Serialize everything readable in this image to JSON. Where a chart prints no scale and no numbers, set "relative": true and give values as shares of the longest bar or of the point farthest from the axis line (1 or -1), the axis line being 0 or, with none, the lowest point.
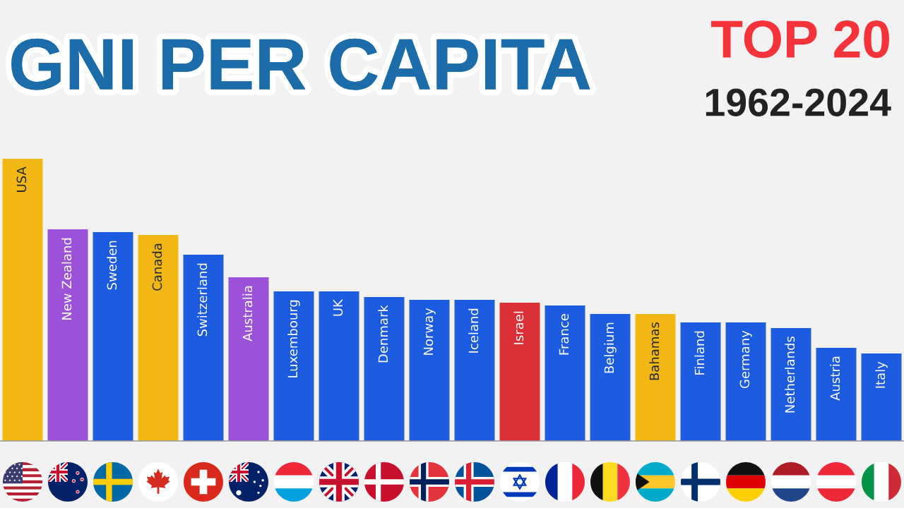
{
  "chart_data": {
    "type": "bar",
    "title": "GNI PER CAPITA",
    "subtitle": "TOP 20",
    "annotations": [
      "1962-2024"
    ],
    "relative": true,
    "categories": [
      "USA",
      "New Zealand",
      "Sweden",
      "Canada",
      "Switzerland",
      "Australia",
      "Luxembourg",
      "UK",
      "Denmark",
      "Norway",
      "Iceland",
      "Israel",
      "France",
      "Belgium",
      "Bahamas",
      "Finland",
      "Germany",
      "Netherlands",
      "Austria",
      "Italy"
    ],
    "values": [
      1,
      0.75,
      0.74,
      0.73,
      0.66,
      0.58,
      0.53,
      0.53,
      0.51,
      0.5,
      0.5,
      0.49,
      0.48,
      0.45,
      0.45,
      0.42,
      0.42,
      0.4,
      0.33,
      0.31
    ],
    "colors": [
      "#f1b715",
      "#9b51d8",
      "#1a5be0",
      "#f1b715",
      "#1a5be0",
      "#9b51d8",
      "#1a5be0",
      "#1a5be0",
      "#1a5be0",
      "#1a5be0",
      "#1a5be0",
      "#dc2f36",
      "#1a5be0",
      "#1a5be0",
      "#f1b715",
      "#1a5be0",
      "#1a5be0",
      "#1a5be0",
      "#1a5be0",
      "#1a5be0"
    ]
  }
}
